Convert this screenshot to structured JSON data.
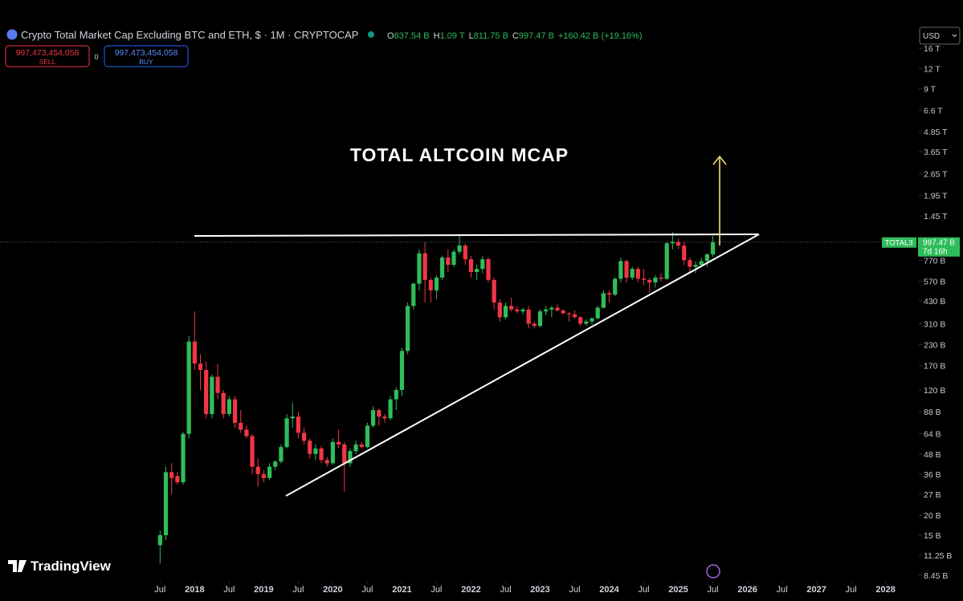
{
  "chart_data": {
    "type": "candlestick",
    "header": "Crypto Total Market Cap Excluding BTC and ETH, $ · 1M · CRYPTOCAP",
    "ohlc_legend": [
      {
        "letter": "O",
        "text": "837.54 B"
      },
      {
        "letter": "H",
        "text": "1.09 T"
      },
      {
        "letter": "L",
        "text": "811.75 B"
      },
      {
        "letter": "C",
        "text": "997.47 B"
      }
    ],
    "change_text": "+160.42 B (+19.16%)",
    "sell": {
      "price": "997,473,454,058",
      "label": "SELL"
    },
    "spread": "0",
    "buy": {
      "price": "997,473,454,058",
      "label": "BUY"
    },
    "currency": "USD",
    "annotation": "TOTAL ALTCOIN MCAP",
    "symbol_tag": "TOTAL3",
    "last_price_label": "997.47 B",
    "countdown": "7d 16h",
    "brand": "TradingView",
    "log_scale": true,
    "up_color": "#2fbd5a",
    "down_color": "#f23645",
    "xlim": [
      "2017-05",
      "2028-03"
    ],
    "xticks": [
      {
        "value": "2017-07",
        "label": "Jul"
      },
      {
        "value": "2018-01",
        "label": "2018"
      },
      {
        "value": "2018-07",
        "label": "Jul"
      },
      {
        "value": "2019-01",
        "label": "2019"
      },
      {
        "value": "2019-07",
        "label": "Jul"
      },
      {
        "value": "2020-01",
        "label": "2020"
      },
      {
        "value": "2020-07",
        "label": "Jul"
      },
      {
        "value": "2021-01",
        "label": "2021"
      },
      {
        "value": "2021-07",
        "label": "Jul"
      },
      {
        "value": "2022-01",
        "label": "2022"
      },
      {
        "value": "2022-07",
        "label": "Jul"
      },
      {
        "value": "2023-01",
        "label": "2023"
      },
      {
        "value": "2023-07",
        "label": "Jul"
      },
      {
        "value": "2024-01",
        "label": "2024"
      },
      {
        "value": "2024-07",
        "label": "Jul"
      },
      {
        "value": "2025-01",
        "label": "2025"
      },
      {
        "value": "2025-07",
        "label": "Jul"
      },
      {
        "value": "2026-01",
        "label": "2026"
      },
      {
        "value": "2026-07",
        "label": "Jul"
      },
      {
        "value": "2027-01",
        "label": "2027"
      },
      {
        "value": "2027-07",
        "label": "Jul"
      },
      {
        "value": "2028-01",
        "label": "2028"
      }
    ],
    "ylim": [
      7.7,
      18000
    ],
    "yticks": [
      {
        "value": 16000,
        "label": "16 T"
      },
      {
        "value": 12000,
        "label": "12 T"
      },
      {
        "value": 9000,
        "label": "9 T"
      },
      {
        "value": 6600,
        "label": "6.6 T"
      },
      {
        "value": 4850,
        "label": "4.85 T"
      },
      {
        "value": 3650,
        "label": "3.65 T"
      },
      {
        "value": 2650,
        "label": "2.65 T"
      },
      {
        "value": 1950,
        "label": "1.95 T"
      },
      {
        "value": 1450,
        "label": "1.45 T"
      },
      {
        "value": 770,
        "label": "770 B"
      },
      {
        "value": 570,
        "label": "570 B"
      },
      {
        "value": 430,
        "label": "430 B"
      },
      {
        "value": 310,
        "label": "310 B"
      },
      {
        "value": 230,
        "label": "230 B"
      },
      {
        "value": 170,
        "label": "170 B"
      },
      {
        "value": 120,
        "label": "120 B"
      },
      {
        "value": 88,
        "label": "88 B"
      },
      {
        "value": 64,
        "label": "64 B"
      },
      {
        "value": 48,
        "label": "48 B"
      },
      {
        "value": 36,
        "label": "36 B"
      },
      {
        "value": 27,
        "label": "27 B"
      },
      {
        "value": 20,
        "label": "20 B"
      },
      {
        "value": 15,
        "label": "15 B"
      },
      {
        "value": 11.25,
        "label": "11.25 B"
      },
      {
        "value": 8.45,
        "label": "8.45 B"
      }
    ],
    "x": [
      "2017-07",
      "2017-08",
      "2017-09",
      "2017-10",
      "2017-11",
      "2017-12",
      "2018-01",
      "2018-02",
      "2018-03",
      "2018-04",
      "2018-05",
      "2018-06",
      "2018-07",
      "2018-08",
      "2018-09",
      "2018-10",
      "2018-11",
      "2018-12",
      "2019-01",
      "2019-02",
      "2019-03",
      "2019-04",
      "2019-05",
      "2019-06",
      "2019-07",
      "2019-08",
      "2019-09",
      "2019-10",
      "2019-11",
      "2019-12",
      "2020-01",
      "2020-02",
      "2020-03",
      "2020-04",
      "2020-05",
      "2020-06",
      "2020-07",
      "2020-08",
      "2020-09",
      "2020-10",
      "2020-11",
      "2020-12",
      "2021-01",
      "2021-02",
      "2021-03",
      "2021-04",
      "2021-05",
      "2021-06",
      "2021-07",
      "2021-08",
      "2021-09",
      "2021-10",
      "2021-11",
      "2021-12",
      "2022-01",
      "2022-02",
      "2022-03",
      "2022-04",
      "2022-05",
      "2022-06",
      "2022-07",
      "2022-08",
      "2022-09",
      "2022-10",
      "2022-11",
      "2022-12",
      "2023-01",
      "2023-02",
      "2023-03",
      "2023-04",
      "2023-05",
      "2023-06",
      "2023-07",
      "2023-08",
      "2023-09",
      "2023-10",
      "2023-11",
      "2023-12",
      "2024-01",
      "2024-02",
      "2024-03",
      "2024-04",
      "2024-05",
      "2024-06",
      "2024-07",
      "2024-08",
      "2024-09",
      "2024-10",
      "2024-11",
      "2024-12",
      "2025-01",
      "2025-02",
      "2025-03",
      "2025-04",
      "2025-05",
      "2025-06",
      "2025-07"
    ],
    "open": [
      13,
      15,
      37,
      35,
      32,
      64,
      240,
      175,
      160,
      85,
      145,
      115,
      85,
      105,
      75,
      68,
      62,
      40,
      36,
      34,
      40,
      43,
      53,
      80,
      82,
      65,
      58,
      48,
      52,
      44,
      42,
      57,
      55,
      42,
      50,
      55,
      53,
      72,
      90,
      82,
      80,
      105,
      120,
      210,
      400,
      550,
      850,
      580,
      500,
      600,
      800,
      720,
      870,
      950,
      780,
      650,
      680,
      780,
      580,
      420,
      340,
      400,
      380,
      370,
      380,
      310,
      300,
      370,
      380,
      390,
      375,
      360,
      355,
      340,
      310,
      320,
      335,
      390,
      480,
      470,
      590,
      760,
      600,
      680,
      590,
      580,
      560,
      600,
      590,
      980,
      1000,
      950,
      770,
      700,
      720,
      760,
      837.54
    ],
    "high": [
      16,
      40,
      42,
      37,
      66,
      260,
      370,
      200,
      180,
      150,
      175,
      120,
      110,
      110,
      90,
      72,
      64,
      45,
      38,
      42,
      44,
      55,
      85,
      100,
      88,
      70,
      60,
      55,
      54,
      46,
      60,
      68,
      57,
      52,
      58,
      57,
      75,
      95,
      92,
      85,
      110,
      125,
      220,
      420,
      560,
      900,
      1000,
      600,
      620,
      820,
      900,
      900,
      1100,
      980,
      820,
      720,
      820,
      800,
      600,
      440,
      420,
      450,
      400,
      390,
      400,
      320,
      380,
      400,
      400,
      410,
      380,
      365,
      375,
      345,
      330,
      340,
      400,
      500,
      500,
      600,
      800,
      780,
      700,
      700,
      680,
      600,
      620,
      640,
      1000,
      1150,
      1050,
      1000,
      800,
      760,
      800,
      850,
      1090
    ],
    "low": [
      10,
      14,
      27,
      31,
      31,
      60,
      160,
      120,
      80,
      80,
      105,
      80,
      82,
      70,
      65,
      60,
      36,
      30,
      32,
      33,
      38,
      42,
      52,
      70,
      60,
      55,
      45,
      44,
      42,
      40,
      41,
      52,
      28,
      40,
      48,
      52,
      52,
      70,
      72,
      75,
      78,
      90,
      110,
      200,
      380,
      500,
      420,
      420,
      440,
      580,
      650,
      700,
      840,
      720,
      600,
      580,
      640,
      560,
      380,
      320,
      330,
      370,
      360,
      355,
      290,
      290,
      295,
      350,
      340,
      370,
      355,
      320,
      335,
      300,
      300,
      305,
      330,
      385,
      420,
      460,
      560,
      560,
      580,
      560,
      540,
      480,
      520,
      570,
      580,
      900,
      900,
      720,
      650,
      640,
      700,
      700,
      811.75
    ],
    "close": [
      15,
      37,
      34,
      32,
      64,
      240,
      175,
      160,
      85,
      145,
      115,
      85,
      105,
      75,
      68,
      62,
      40,
      36,
      34,
      40,
      43,
      53,
      80,
      82,
      65,
      58,
      48,
      52,
      44,
      42,
      57,
      55,
      42,
      50,
      55,
      53,
      72,
      90,
      82,
      80,
      105,
      120,
      210,
      400,
      550,
      850,
      580,
      500,
      600,
      800,
      720,
      870,
      950,
      780,
      650,
      680,
      780,
      580,
      420,
      340,
      400,
      380,
      370,
      380,
      310,
      300,
      370,
      380,
      390,
      375,
      360,
      355,
      340,
      310,
      320,
      335,
      390,
      480,
      470,
      590,
      760,
      600,
      680,
      590,
      580,
      560,
      600,
      590,
      980,
      1000,
      950,
      770,
      700,
      720,
      760,
      838,
      997.47
    ],
    "last": 997.47
  }
}
